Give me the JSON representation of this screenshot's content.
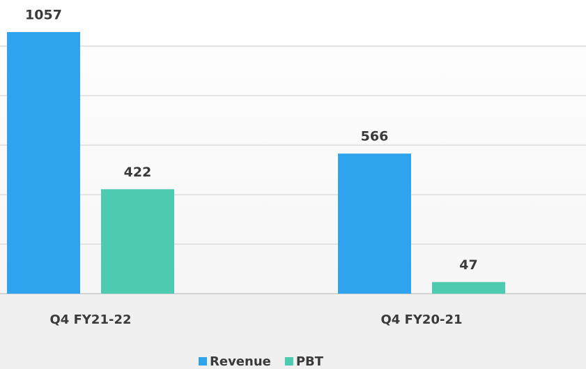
{
  "chart_data": {
    "type": "bar",
    "categories": [
      "Q4 FY21-22",
      "Q4 FY20-21"
    ],
    "series": [
      {
        "name": "Revenue",
        "color": "#2fa3ee",
        "values": [
          1057,
          566
        ]
      },
      {
        "name": "PBT",
        "color": "#4ccbb0",
        "values": [
          422,
          47
        ]
      }
    ],
    "ylim": [
      0,
      1180
    ],
    "yticks": [
      0,
      200,
      400,
      600,
      800,
      1000
    ],
    "grid": true,
    "legend": "bottom"
  }
}
